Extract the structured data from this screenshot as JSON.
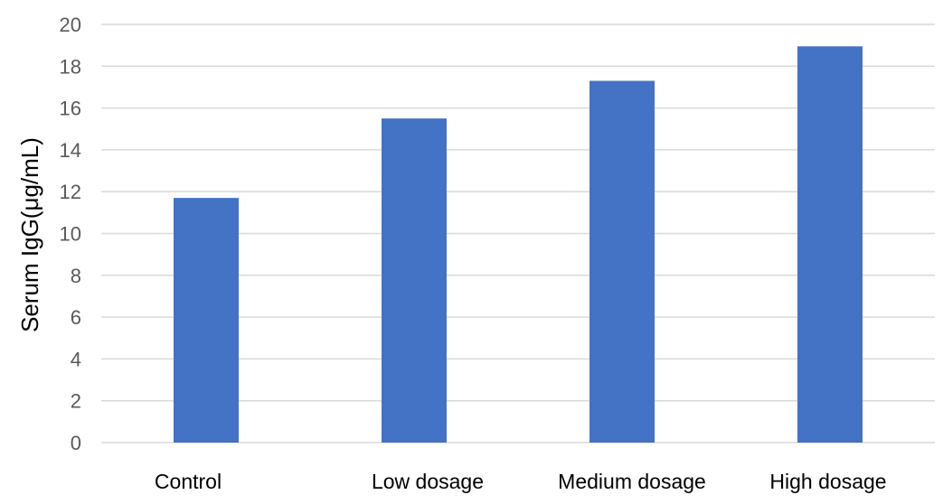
{
  "chart_data": {
    "type": "bar",
    "title": "",
    "xlabel": "",
    "ylabel": "Serum IgG(μg/mL)",
    "categories": [
      "Control",
      "Low dosage",
      "Medium dosage",
      "High dosage"
    ],
    "values": [
      11.7,
      15.5,
      17.3,
      18.95
    ],
    "ylim": [
      0,
      20
    ],
    "yticks": [
      "0",
      "2",
      "4",
      "6",
      "8",
      "10",
      "12",
      "14",
      "16",
      "18",
      "20"
    ],
    "grid": true,
    "legend": "none",
    "colors": {
      "bar": "#4472C4",
      "grid": "#D9D9D9",
      "tick_text": "#595959",
      "axis_label": "#000000",
      "category_text": "#000000"
    }
  }
}
